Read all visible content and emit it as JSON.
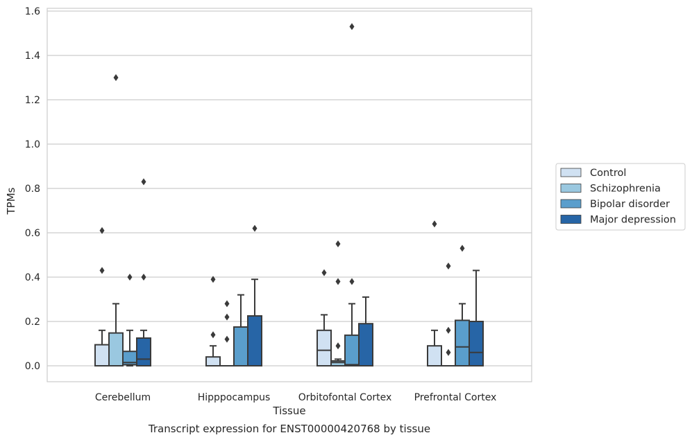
{
  "chart_data": {
    "type": "box",
    "title": "Transcript expression for ENST00000420768 by tissue",
    "xlabel": "Tissue",
    "ylabel": "TPMs",
    "ylim": [
      -0.07,
      1.61
    ],
    "yticks": [
      0.0,
      0.2,
      0.4,
      0.6,
      0.8,
      1.0,
      1.2,
      1.4,
      1.6
    ],
    "ytick_labels": [
      "0.0",
      "0.2",
      "0.4",
      "0.6",
      "0.8",
      "1.0",
      "1.2",
      "1.4",
      "1.6"
    ],
    "grid": "horizontal",
    "legend_position": "right",
    "categories": [
      "Cerebellum",
      "Hipppocampus",
      "Orbitofontal Cortex",
      "Prefrontal Cortex"
    ],
    "series": [
      {
        "name": "Control",
        "color": "#d0e1f2",
        "boxes": [
          {
            "min": 0.0,
            "q1": 0.0,
            "median": 0.0,
            "q3": 0.095,
            "max": 0.16,
            "outliers": [
              0.43,
              0.61
            ]
          },
          {
            "min": 0.0,
            "q1": 0.0,
            "median": 0.0,
            "q3": 0.04,
            "max": 0.09,
            "outliers": [
              0.14,
              0.39
            ]
          },
          {
            "min": 0.0,
            "q1": 0.0,
            "median": 0.07,
            "q3": 0.16,
            "max": 0.23,
            "outliers": [
              0.42
            ]
          },
          {
            "min": 0.0,
            "q1": 0.0,
            "median": 0.0,
            "q3": 0.09,
            "max": 0.16,
            "outliers": [
              0.64
            ]
          }
        ]
      },
      {
        "name": "Schizophrenia",
        "color": "#9ac8e0",
        "boxes": [
          {
            "min": 0.0,
            "q1": 0.0,
            "median": 0.0,
            "q3": 0.148,
            "max": 0.28,
            "outliers": [
              1.3
            ]
          },
          {
            "min": 0.0,
            "q1": 0.0,
            "median": 0.0,
            "q3": 0.0,
            "max": 0.0,
            "outliers": [
              0.12,
              0.22,
              0.28
            ]
          },
          {
            "min": 0.0,
            "q1": 0.0,
            "median": 0.015,
            "q3": 0.022,
            "max": 0.03,
            "outliers": [
              0.09,
              0.38,
              0.55
            ]
          },
          {
            "min": 0.0,
            "q1": 0.0,
            "median": 0.0,
            "q3": 0.0,
            "max": 0.0,
            "outliers": [
              0.06,
              0.16,
              0.45
            ]
          }
        ]
      },
      {
        "name": "Bipolar disorder",
        "color": "#5a9ecc",
        "boxes": [
          {
            "min": 0.0,
            "q1": 0.005,
            "median": 0.015,
            "q3": 0.065,
            "max": 0.16,
            "outliers": [
              0.4
            ]
          },
          {
            "min": 0.0,
            "q1": 0.0,
            "median": 0.0,
            "q3": 0.175,
            "max": 0.32,
            "outliers": []
          },
          {
            "min": 0.0,
            "q1": 0.0,
            "median": 0.005,
            "q3": 0.138,
            "max": 0.28,
            "outliers": [
              0.38,
              1.53
            ]
          },
          {
            "min": 0.0,
            "q1": 0.0,
            "median": 0.085,
            "q3": 0.205,
            "max": 0.28,
            "outliers": [
              0.53
            ]
          }
        ]
      },
      {
        "name": "Major depression",
        "color": "#2765a6",
        "boxes": [
          {
            "min": 0.0,
            "q1": 0.0,
            "median": 0.03,
            "q3": 0.125,
            "max": 0.16,
            "outliers": [
              0.4,
              0.83
            ]
          },
          {
            "min": 0.0,
            "q1": 0.0,
            "median": 0.0,
            "q3": 0.225,
            "max": 0.39,
            "outliers": [
              0.62
            ]
          },
          {
            "min": 0.0,
            "q1": 0.0,
            "median": 0.0,
            "q3": 0.19,
            "max": 0.31,
            "outliers": []
          },
          {
            "min": 0.0,
            "q1": 0.0,
            "median": 0.06,
            "q3": 0.2,
            "max": 0.43,
            "outliers": []
          }
        ]
      }
    ]
  }
}
